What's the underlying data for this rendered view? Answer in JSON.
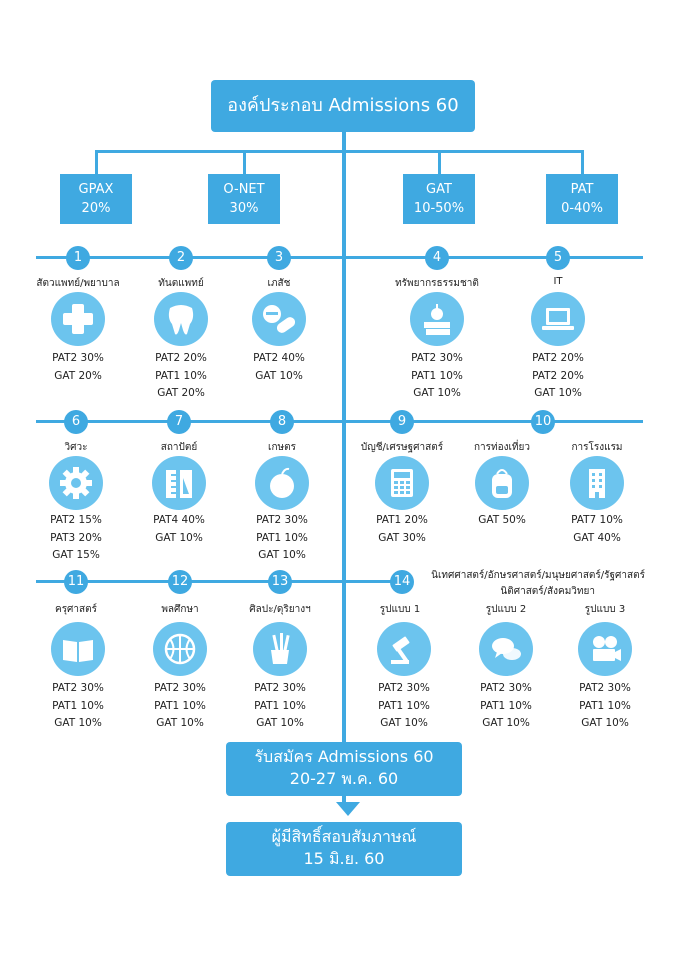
{
  "title": "องค์ประกอบ Admissions 60",
  "components": [
    {
      "name": "GPAX",
      "value": "20%"
    },
    {
      "name": "O-NET",
      "value": "30%"
    },
    {
      "name": "GAT",
      "value": "10-50%"
    },
    {
      "name": "PAT",
      "value": "0-40%"
    }
  ],
  "groups": [
    {
      "num": "1",
      "label": "สัตวแพทย์/พยาบาล",
      "icon": "medical-cross-icon",
      "weights": [
        "PAT2 30%",
        "GAT 20%"
      ]
    },
    {
      "num": "2",
      "label": "ทันตแพทย์",
      "icon": "tooth-icon",
      "weights": [
        "PAT2 20%",
        "PAT1 10%",
        "GAT 20%"
      ]
    },
    {
      "num": "3",
      "label": "เภสัช",
      "icon": "pill-icon",
      "weights": [
        "PAT2 40%",
        "GAT 10%"
      ]
    },
    {
      "num": "4",
      "label": "ทรัพยากรธรรมชาติ",
      "icon": "plant-books-icon",
      "weights": [
        "PAT2 30%",
        "PAT1 10%",
        "GAT 10%"
      ]
    },
    {
      "num": "5",
      "label": "IT",
      "icon": "laptop-icon",
      "weights": [
        "PAT2 20%",
        "PAT2 20%",
        "GAT 10%"
      ]
    },
    {
      "num": "6",
      "label": "วิศวะ",
      "icon": "gear-icon",
      "weights": [
        "PAT2 15%",
        "PAT3 20%",
        "GAT 15%"
      ]
    },
    {
      "num": "7",
      "label": "สถาปัตย์",
      "icon": "ruler-icon",
      "weights": [
        "PAT4 40%",
        "GAT 10%"
      ]
    },
    {
      "num": "8",
      "label": "เกษตร",
      "icon": "apple-icon",
      "weights": [
        "PAT2 30%",
        "PAT1 10%",
        "GAT 10%"
      ]
    },
    {
      "num": "9",
      "label": "บัญชี/เศรษฐศาสตร์",
      "icon": "calculator-icon",
      "weights": [
        "PAT1 20%",
        "GAT 30%"
      ]
    },
    {
      "num": "10",
      "label": "การท่องเที่ยว",
      "icon": "backpack-icon",
      "weights": [
        "GAT 50%"
      ]
    },
    {
      "num": "",
      "label": "การโรงแรม",
      "icon": "hotel-icon",
      "weights": [
        "PAT7 10%",
        "GAT 40%"
      ]
    },
    {
      "num": "11",
      "label": "ครุศาสตร์",
      "icon": "book-icon",
      "weights": [
        "PAT2 30%",
        "PAT1 10%",
        "GAT 10%"
      ]
    },
    {
      "num": "12",
      "label": "พลศึกษา",
      "icon": "basketball-icon",
      "weights": [
        "PAT2 30%",
        "PAT1 10%",
        "GAT 10%"
      ]
    },
    {
      "num": "13",
      "label": "ศิลปะ/ดุริยางฯ",
      "icon": "art-supplies-icon",
      "weights": [
        "PAT2 30%",
        "PAT1 10%",
        "GAT 10%"
      ]
    },
    {
      "num": "14",
      "label": "รูปแบบ 1",
      "icon": "gavel-icon",
      "weights": [
        "PAT2 30%",
        "PAT1 10%",
        "GAT 10%"
      ]
    },
    {
      "num": "",
      "label": "รูปแบบ 2",
      "icon": "speech-bubbles-icon",
      "weights": [
        "PAT2 30%",
        "PAT1 10%",
        "GAT 10%"
      ]
    },
    {
      "num": "",
      "label": "รูปแบบ 3",
      "icon": "film-camera-icon",
      "weights": [
        "PAT2 30%",
        "PAT1 10%",
        "GAT 10%"
      ]
    }
  ],
  "group14_note": [
    "นิเทศศาสตร์/อักษรศาสตร์/มนุษยศาสตร์/รัฐศาสตร์",
    "นิติศาสตร์/สังคมวิทยา"
  ],
  "apply": {
    "line1": "รับสมัคร Admissions 60",
    "line2": "20-27 พ.ค. 60"
  },
  "interview": {
    "line1": "ผู้มีสิทธิ์สอบสัมภาษณ์",
    "line2": "15 มิ.ย. 60"
  },
  "colors": {
    "primary": "#3fa9e1",
    "icon_bg": "#6cc4ee"
  }
}
